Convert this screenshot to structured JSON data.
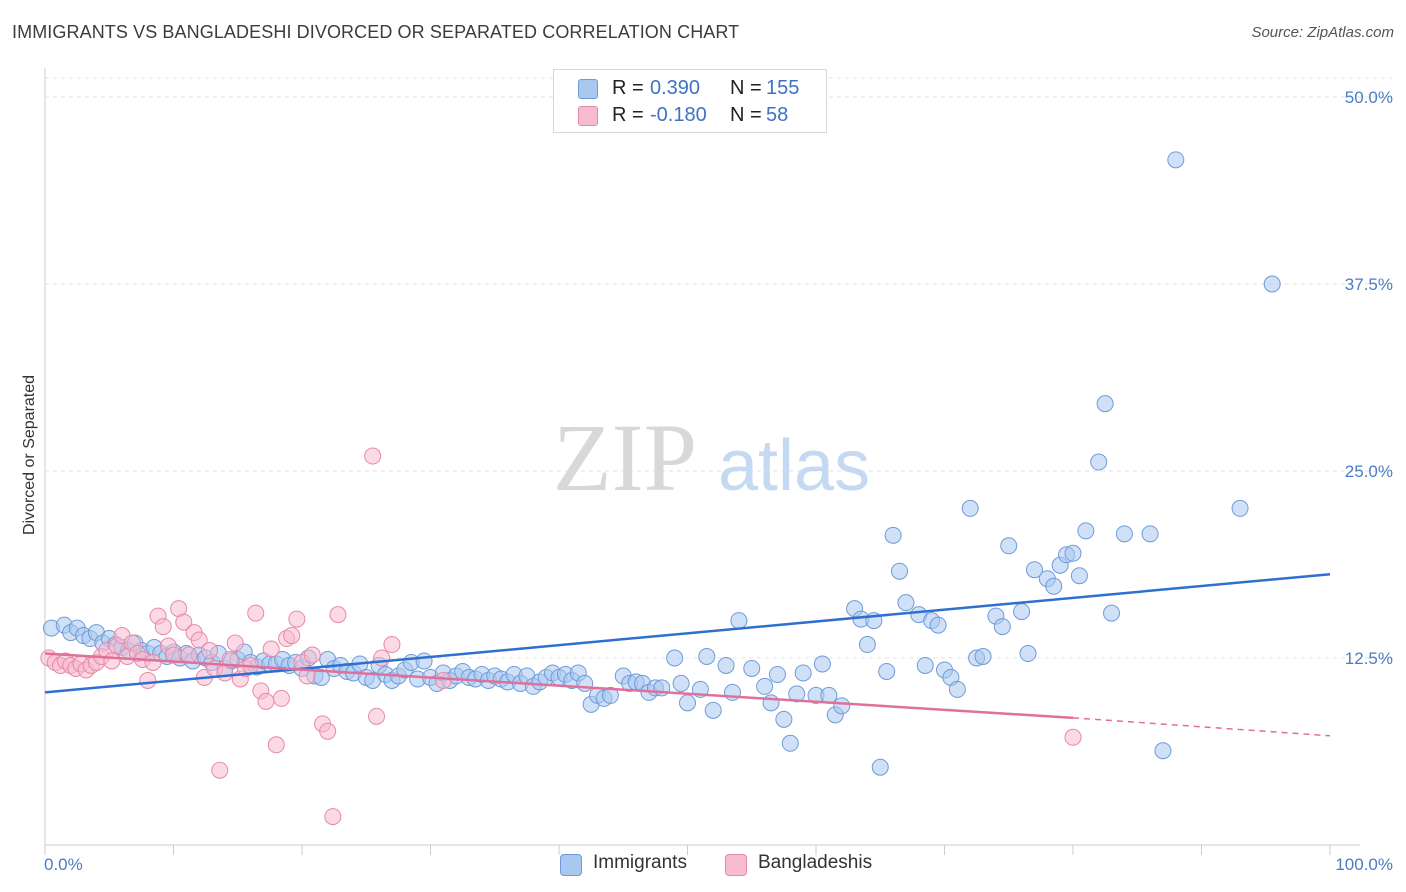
{
  "title": "IMMIGRANTS VS BANGLADESHI DIVORCED OR SEPARATED CORRELATION CHART",
  "source": "Source: ZipAtlas.com",
  "watermark": {
    "zip": "ZIP",
    "atlas": "atlas"
  },
  "legend": {
    "rows": [
      {
        "r_label": "R =",
        "r_value": "0.390",
        "n_label": "N =",
        "n_value": "155",
        "color": "#a9c8f0",
        "border": "#6e9bd8"
      },
      {
        "r_label": "R =",
        "r_value": "-0.180",
        "n_label": "N =",
        "n_value": "58",
        "color": "#f7bcd0",
        "border": "#e58aa8"
      }
    ]
  },
  "bottom_legend": [
    {
      "label": "Immigrants",
      "color": "#a9c8f0",
      "border": "#6e9bd8"
    },
    {
      "label": "Bangladeshis",
      "color": "#f7bcd0",
      "border": "#e58aa8"
    }
  ],
  "chart_data": {
    "type": "scatter",
    "title": "IMMIGRANTS VS BANGLADESHI DIVORCED OR SEPARATED CORRELATION CHART",
    "xlabel": "",
    "ylabel": "Divorced or Separated",
    "xlim": [
      0,
      100
    ],
    "ylim": [
      0,
      50
    ],
    "x_tick_labels": [
      "0.0%",
      "100.0%"
    ],
    "y_tick_labels": [
      "12.5%",
      "25.0%",
      "37.5%",
      "50.0%"
    ],
    "y_tick_values": [
      12.5,
      25.0,
      37.5,
      50.0
    ],
    "grid": true,
    "legend_placement": "top-center",
    "series": [
      {
        "name": "Immigrants",
        "color": "#a9c8f0",
        "stroke": "#6e9bd8",
        "trend": {
          "x": [
            0,
            100
          ],
          "y": [
            10.2,
            18.1
          ],
          "color": "#2f6fd0"
        },
        "points": [
          [
            0.5,
            14.5
          ],
          [
            1.5,
            14.7
          ],
          [
            2,
            14.2
          ],
          [
            2.5,
            14.5
          ],
          [
            3,
            14
          ],
          [
            3.5,
            13.8
          ],
          [
            4,
            14.2
          ],
          [
            4.5,
            13.5
          ],
          [
            5,
            13.8
          ],
          [
            5.5,
            13.4
          ],
          [
            6,
            13.2
          ],
          [
            6.5,
            13
          ],
          [
            7,
            13.5
          ],
          [
            7.5,
            13
          ],
          [
            8,
            12.8
          ],
          [
            8.5,
            13.2
          ],
          [
            9,
            12.8
          ],
          [
            9.5,
            12.6
          ],
          [
            10,
            12.9
          ],
          [
            10.5,
            12.5
          ],
          [
            11,
            12.8
          ],
          [
            11.5,
            12.3
          ],
          [
            12,
            12.7
          ],
          [
            12.5,
            12.5
          ],
          [
            13,
            12.2
          ],
          [
            13.5,
            12.8
          ],
          [
            14,
            11.8
          ],
          [
            14.5,
            12.3
          ],
          [
            15,
            12.4
          ],
          [
            15.5,
            12.9
          ],
          [
            16,
            12.2
          ],
          [
            16.5,
            11.9
          ],
          [
            17,
            12.3
          ],
          [
            17.5,
            12.1
          ],
          [
            18,
            12.1
          ],
          [
            18.5,
            12.4
          ],
          [
            19,
            12
          ],
          [
            19.5,
            12.2
          ],
          [
            20,
            11.8
          ],
          [
            20.5,
            12.5
          ],
          [
            21,
            11.3
          ],
          [
            21.5,
            11.2
          ],
          [
            22,
            12.4
          ],
          [
            22.5,
            11.8
          ],
          [
            23,
            12
          ],
          [
            23.5,
            11.6
          ],
          [
            24,
            11.5
          ],
          [
            24.5,
            12.1
          ],
          [
            25,
            11.2
          ],
          [
            25.5,
            11
          ],
          [
            26,
            12
          ],
          [
            26.5,
            11.4
          ],
          [
            27,
            11
          ],
          [
            27.5,
            11.3
          ],
          [
            28,
            11.7
          ],
          [
            28.5,
            12.2
          ],
          [
            29,
            11.1
          ],
          [
            29.5,
            12.3
          ],
          [
            30,
            11.2
          ],
          [
            30.5,
            10.8
          ],
          [
            31,
            11.5
          ],
          [
            31.5,
            11
          ],
          [
            32,
            11.3
          ],
          [
            32.5,
            11.6
          ],
          [
            33,
            11.2
          ],
          [
            33.5,
            11.1
          ],
          [
            34,
            11.4
          ],
          [
            34.5,
            11
          ],
          [
            35,
            11.3
          ],
          [
            35.5,
            11.1
          ],
          [
            36,
            10.9
          ],
          [
            36.5,
            11.4
          ],
          [
            37,
            10.8
          ],
          [
            37.5,
            11.3
          ],
          [
            38,
            10.6
          ],
          [
            38.5,
            10.9
          ],
          [
            39,
            11.2
          ],
          [
            39.5,
            11.5
          ],
          [
            40,
            11.2
          ],
          [
            40.5,
            11.4
          ],
          [
            41,
            11
          ],
          [
            41.5,
            11.5
          ],
          [
            42,
            10.8
          ],
          [
            42.5,
            9.4
          ],
          [
            43,
            10
          ],
          [
            43.5,
            9.8
          ],
          [
            44,
            10
          ],
          [
            45,
            11.3
          ],
          [
            45.5,
            10.8
          ],
          [
            46,
            10.9
          ],
          [
            46.5,
            10.8
          ],
          [
            47,
            10.2
          ],
          [
            47.5,
            10.5
          ],
          [
            48,
            10.5
          ],
          [
            49,
            12.5
          ],
          [
            49.5,
            10.8
          ],
          [
            50,
            9.5
          ],
          [
            51,
            10.4
          ],
          [
            51.5,
            12.6
          ],
          [
            52,
            9
          ],
          [
            53,
            12
          ],
          [
            53.5,
            10.2
          ],
          [
            54,
            15
          ],
          [
            55,
            11.8
          ],
          [
            56,
            10.6
          ],
          [
            56.5,
            9.5
          ],
          [
            57,
            11.4
          ],
          [
            57.5,
            8.4
          ],
          [
            58,
            6.8
          ],
          [
            58.5,
            10.1
          ],
          [
            59,
            11.5
          ],
          [
            60,
            10
          ],
          [
            60.5,
            12.1
          ],
          [
            61,
            10
          ],
          [
            61.5,
            8.7
          ],
          [
            62,
            9.3
          ],
          [
            63,
            15.8
          ],
          [
            63.5,
            15.1
          ],
          [
            64,
            13.4
          ],
          [
            64.5,
            15
          ],
          [
            65,
            5.2
          ],
          [
            65.5,
            11.6
          ],
          [
            66,
            20.7
          ],
          [
            66.5,
            18.3
          ],
          [
            67,
            16.2
          ],
          [
            68,
            15.4
          ],
          [
            68.5,
            12
          ],
          [
            69,
            15
          ],
          [
            69.5,
            14.7
          ],
          [
            70,
            11.7
          ],
          [
            70.5,
            11.2
          ],
          [
            71,
            10.4
          ],
          [
            72,
            22.5
          ],
          [
            72.5,
            12.5
          ],
          [
            73,
            12.6
          ],
          [
            74,
            15.3
          ],
          [
            74.5,
            14.6
          ],
          [
            75,
            20
          ],
          [
            76,
            15.6
          ],
          [
            76.5,
            12.8
          ],
          [
            77,
            18.4
          ],
          [
            78,
            17.8
          ],
          [
            78.5,
            17.3
          ],
          [
            79,
            18.7
          ],
          [
            79.5,
            19.4
          ],
          [
            80,
            19.5
          ],
          [
            80.5,
            18
          ],
          [
            81,
            21
          ],
          [
            82,
            25.6
          ],
          [
            82.5,
            29.5
          ],
          [
            83,
            15.5
          ],
          [
            84,
            20.8
          ],
          [
            86,
            20.8
          ],
          [
            87,
            6.3
          ],
          [
            88,
            45.8
          ],
          [
            95.5,
            37.5
          ],
          [
            93,
            22.5
          ]
        ]
      },
      {
        "name": "Bangladeshis",
        "color": "#f7bcd0",
        "stroke": "#e58aa8",
        "trend": {
          "x": [
            0,
            80
          ],
          "y": [
            12.8,
            8.5
          ],
          "color": "#e0709a"
        },
        "trend_dashed": {
          "x": [
            80,
            100
          ],
          "y": [
            8.5,
            7.3
          ]
        },
        "points": [
          [
            0.3,
            12.5
          ],
          [
            0.8,
            12.2
          ],
          [
            1.2,
            12
          ],
          [
            1.6,
            12.3
          ],
          [
            2,
            12
          ],
          [
            2.4,
            11.8
          ],
          [
            2.8,
            12.1
          ],
          [
            3.2,
            11.7
          ],
          [
            3.6,
            12
          ],
          [
            4,
            12.2
          ],
          [
            4.4,
            12.6
          ],
          [
            4.8,
            13
          ],
          [
            5.2,
            12.3
          ],
          [
            5.6,
            13.3
          ],
          [
            6,
            14
          ],
          [
            6.4,
            12.6
          ],
          [
            6.8,
            13.5
          ],
          [
            7.2,
            12.8
          ],
          [
            7.6,
            12.4
          ],
          [
            8,
            11
          ],
          [
            8.4,
            12.2
          ],
          [
            8.8,
            15.3
          ],
          [
            9.2,
            14.6
          ],
          [
            9.6,
            13.3
          ],
          [
            10,
            12.7
          ],
          [
            10.4,
            15.8
          ],
          [
            10.8,
            14.9
          ],
          [
            11.2,
            12.7
          ],
          [
            11.6,
            14.2
          ],
          [
            12,
            13.7
          ],
          [
            12.4,
            11.2
          ],
          [
            12.8,
            13
          ],
          [
            13.2,
            11.8
          ],
          [
            13.6,
            5
          ],
          [
            14,
            11.5
          ],
          [
            14.4,
            12.4
          ],
          [
            14.8,
            13.5
          ],
          [
            15.2,
            11.1
          ],
          [
            15.6,
            11.8
          ],
          [
            16,
            12
          ],
          [
            16.4,
            15.5
          ],
          [
            16.8,
            10.3
          ],
          [
            17.2,
            9.6
          ],
          [
            17.6,
            13.1
          ],
          [
            18,
            6.7
          ],
          [
            18.4,
            9.8
          ],
          [
            18.8,
            13.8
          ],
          [
            19.2,
            14
          ],
          [
            19.6,
            15.1
          ],
          [
            20,
            12.2
          ],
          [
            20.4,
            11.3
          ],
          [
            20.8,
            12.7
          ],
          [
            21.6,
            8.1
          ],
          [
            22,
            7.6
          ],
          [
            22.4,
            1.9
          ],
          [
            22.8,
            15.4
          ],
          [
            25.5,
            26
          ],
          [
            25.8,
            8.6
          ],
          [
            26.2,
            12.5
          ],
          [
            27,
            13.4
          ],
          [
            31,
            11
          ],
          [
            80,
            7.2
          ]
        ]
      }
    ]
  }
}
